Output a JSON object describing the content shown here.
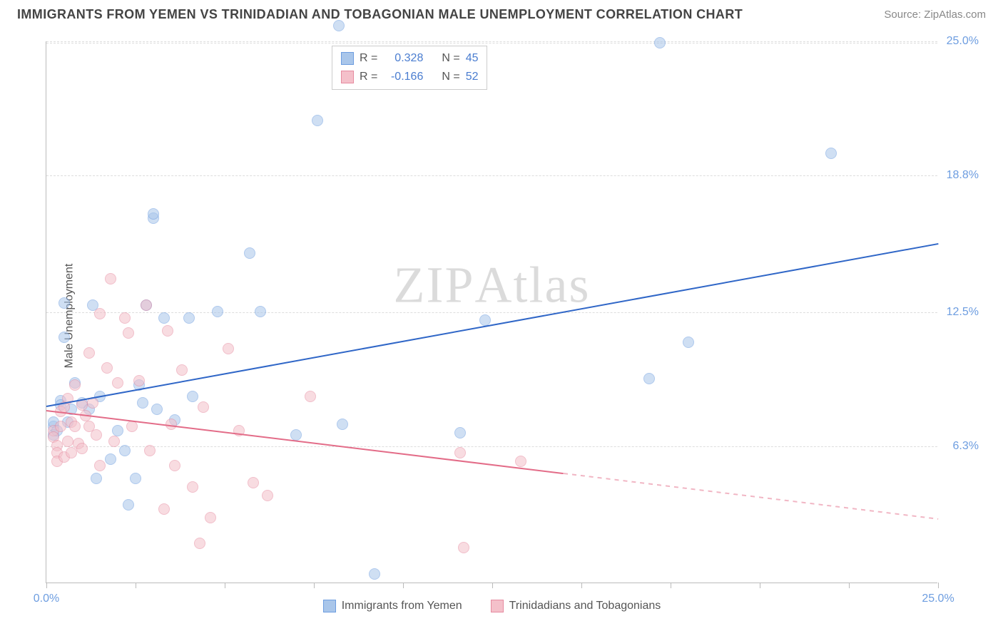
{
  "header": {
    "title": "IMMIGRANTS FROM YEMEN VS TRINIDADIAN AND TOBAGONIAN MALE UNEMPLOYMENT CORRELATION CHART",
    "source_prefix": "Source: ",
    "source": "ZipAtlas.com"
  },
  "chart": {
    "type": "scatter",
    "ylabel": "Male Unemployment",
    "xlim": [
      0,
      25
    ],
    "ylim": [
      0,
      25
    ],
    "xtick_positions": [
      0,
      2.5,
      5,
      7.5,
      10,
      12.5,
      15,
      17.5,
      20,
      22.5,
      25
    ],
    "yticks": [
      {
        "v": 6.3,
        "label": "6.3%"
      },
      {
        "v": 12.5,
        "label": "12.5%"
      },
      {
        "v": 18.8,
        "label": "18.8%"
      },
      {
        "v": 25.0,
        "label": "25.0%"
      }
    ],
    "x_axis_labels": {
      "min": "0.0%",
      "max": "25.0%"
    },
    "grid_color": "#dddddd",
    "background_color": "#ffffff",
    "axis_color": "#bbbbbb",
    "tick_label_color": "#6d9de0",
    "marker_radius": 8,
    "marker_opacity": 0.55,
    "watermark": "ZIPAtlas",
    "series": [
      {
        "id": "yemen",
        "label": "Immigrants from Yemen",
        "fill": "#a9c6ea",
        "stroke": "#6d9de0",
        "r_label": "R =",
        "r_value": "0.328",
        "n_label": "N =",
        "n_value": "45",
        "trend": {
          "x1": 0,
          "y1": 8.2,
          "x2": 25,
          "y2": 15.7,
          "color": "#2f66c7",
          "width": 2,
          "dash": false
        },
        "points": [
          [
            0.2,
            7.2
          ],
          [
            0.2,
            7.4
          ],
          [
            0.2,
            6.8
          ],
          [
            0.3,
            7.0
          ],
          [
            0.4,
            8.4
          ],
          [
            0.4,
            8.2
          ],
          [
            0.5,
            12.9
          ],
          [
            0.5,
            11.3
          ],
          [
            0.6,
            7.4
          ],
          [
            0.7,
            8.0
          ],
          [
            0.8,
            9.2
          ],
          [
            1.0,
            8.3
          ],
          [
            1.2,
            8.0
          ],
          [
            1.3,
            12.8
          ],
          [
            1.4,
            4.8
          ],
          [
            1.5,
            8.6
          ],
          [
            1.8,
            5.7
          ],
          [
            2.0,
            7.0
          ],
          [
            2.2,
            6.1
          ],
          [
            2.3,
            3.6
          ],
          [
            2.5,
            4.8
          ],
          [
            2.6,
            9.1
          ],
          [
            2.7,
            8.3
          ],
          [
            2.8,
            12.8
          ],
          [
            3.0,
            16.8
          ],
          [
            3.0,
            17.0
          ],
          [
            3.1,
            8.0
          ],
          [
            3.3,
            12.2
          ],
          [
            3.6,
            7.5
          ],
          [
            4.0,
            12.2
          ],
          [
            4.1,
            8.6
          ],
          [
            4.8,
            12.5
          ],
          [
            5.7,
            15.2
          ],
          [
            6.0,
            12.5
          ],
          [
            7.0,
            6.8
          ],
          [
            7.6,
            21.3
          ],
          [
            8.2,
            25.7
          ],
          [
            8.3,
            7.3
          ],
          [
            9.2,
            0.4
          ],
          [
            11.6,
            6.9
          ],
          [
            12.3,
            12.1
          ],
          [
            16.9,
            9.4
          ],
          [
            18.0,
            11.1
          ],
          [
            22.0,
            19.8
          ],
          [
            17.2,
            24.9
          ]
        ]
      },
      {
        "id": "trinidad",
        "label": "Trinidadians and Tobagonians",
        "fill": "#f4c0ca",
        "stroke": "#e68ba0",
        "r_label": "R =",
        "r_value": "-0.166",
        "n_label": "N =",
        "n_value": "52",
        "trend": {
          "x1": 0,
          "y1": 8.0,
          "x2": 25,
          "y2": 3.0,
          "color": "#e36c88",
          "width": 2,
          "dash_split": 14.5
        },
        "points": [
          [
            0.2,
            7.0
          ],
          [
            0.2,
            6.7
          ],
          [
            0.3,
            6.3
          ],
          [
            0.3,
            6.0
          ],
          [
            0.3,
            5.6
          ],
          [
            0.4,
            7.2
          ],
          [
            0.4,
            7.9
          ],
          [
            0.5,
            8.1
          ],
          [
            0.5,
            5.8
          ],
          [
            0.6,
            8.5
          ],
          [
            0.6,
            6.5
          ],
          [
            0.7,
            7.4
          ],
          [
            0.7,
            6.0
          ],
          [
            0.8,
            9.1
          ],
          [
            0.8,
            7.2
          ],
          [
            0.9,
            6.4
          ],
          [
            1.0,
            8.2
          ],
          [
            1.0,
            6.2
          ],
          [
            1.1,
            7.7
          ],
          [
            1.2,
            7.2
          ],
          [
            1.2,
            10.6
          ],
          [
            1.3,
            8.3
          ],
          [
            1.4,
            6.8
          ],
          [
            1.5,
            12.4
          ],
          [
            1.5,
            5.4
          ],
          [
            1.7,
            9.9
          ],
          [
            1.8,
            14.0
          ],
          [
            1.9,
            6.5
          ],
          [
            2.0,
            9.2
          ],
          [
            2.2,
            12.2
          ],
          [
            2.3,
            11.5
          ],
          [
            2.4,
            7.2
          ],
          [
            2.6,
            9.3
          ],
          [
            2.8,
            12.8
          ],
          [
            2.9,
            6.1
          ],
          [
            3.3,
            3.4
          ],
          [
            3.4,
            11.6
          ],
          [
            3.5,
            7.3
          ],
          [
            3.6,
            5.4
          ],
          [
            3.8,
            9.8
          ],
          [
            4.1,
            4.4
          ],
          [
            4.3,
            1.8
          ],
          [
            4.4,
            8.1
          ],
          [
            4.6,
            3.0
          ],
          [
            5.1,
            10.8
          ],
          [
            5.4,
            7.0
          ],
          [
            5.8,
            4.6
          ],
          [
            6.2,
            4.0
          ],
          [
            7.4,
            8.6
          ],
          [
            11.7,
            1.6
          ],
          [
            11.6,
            6.0
          ],
          [
            13.3,
            5.6
          ]
        ]
      }
    ],
    "legend": [
      {
        "series": 0
      },
      {
        "series": 1
      }
    ]
  }
}
